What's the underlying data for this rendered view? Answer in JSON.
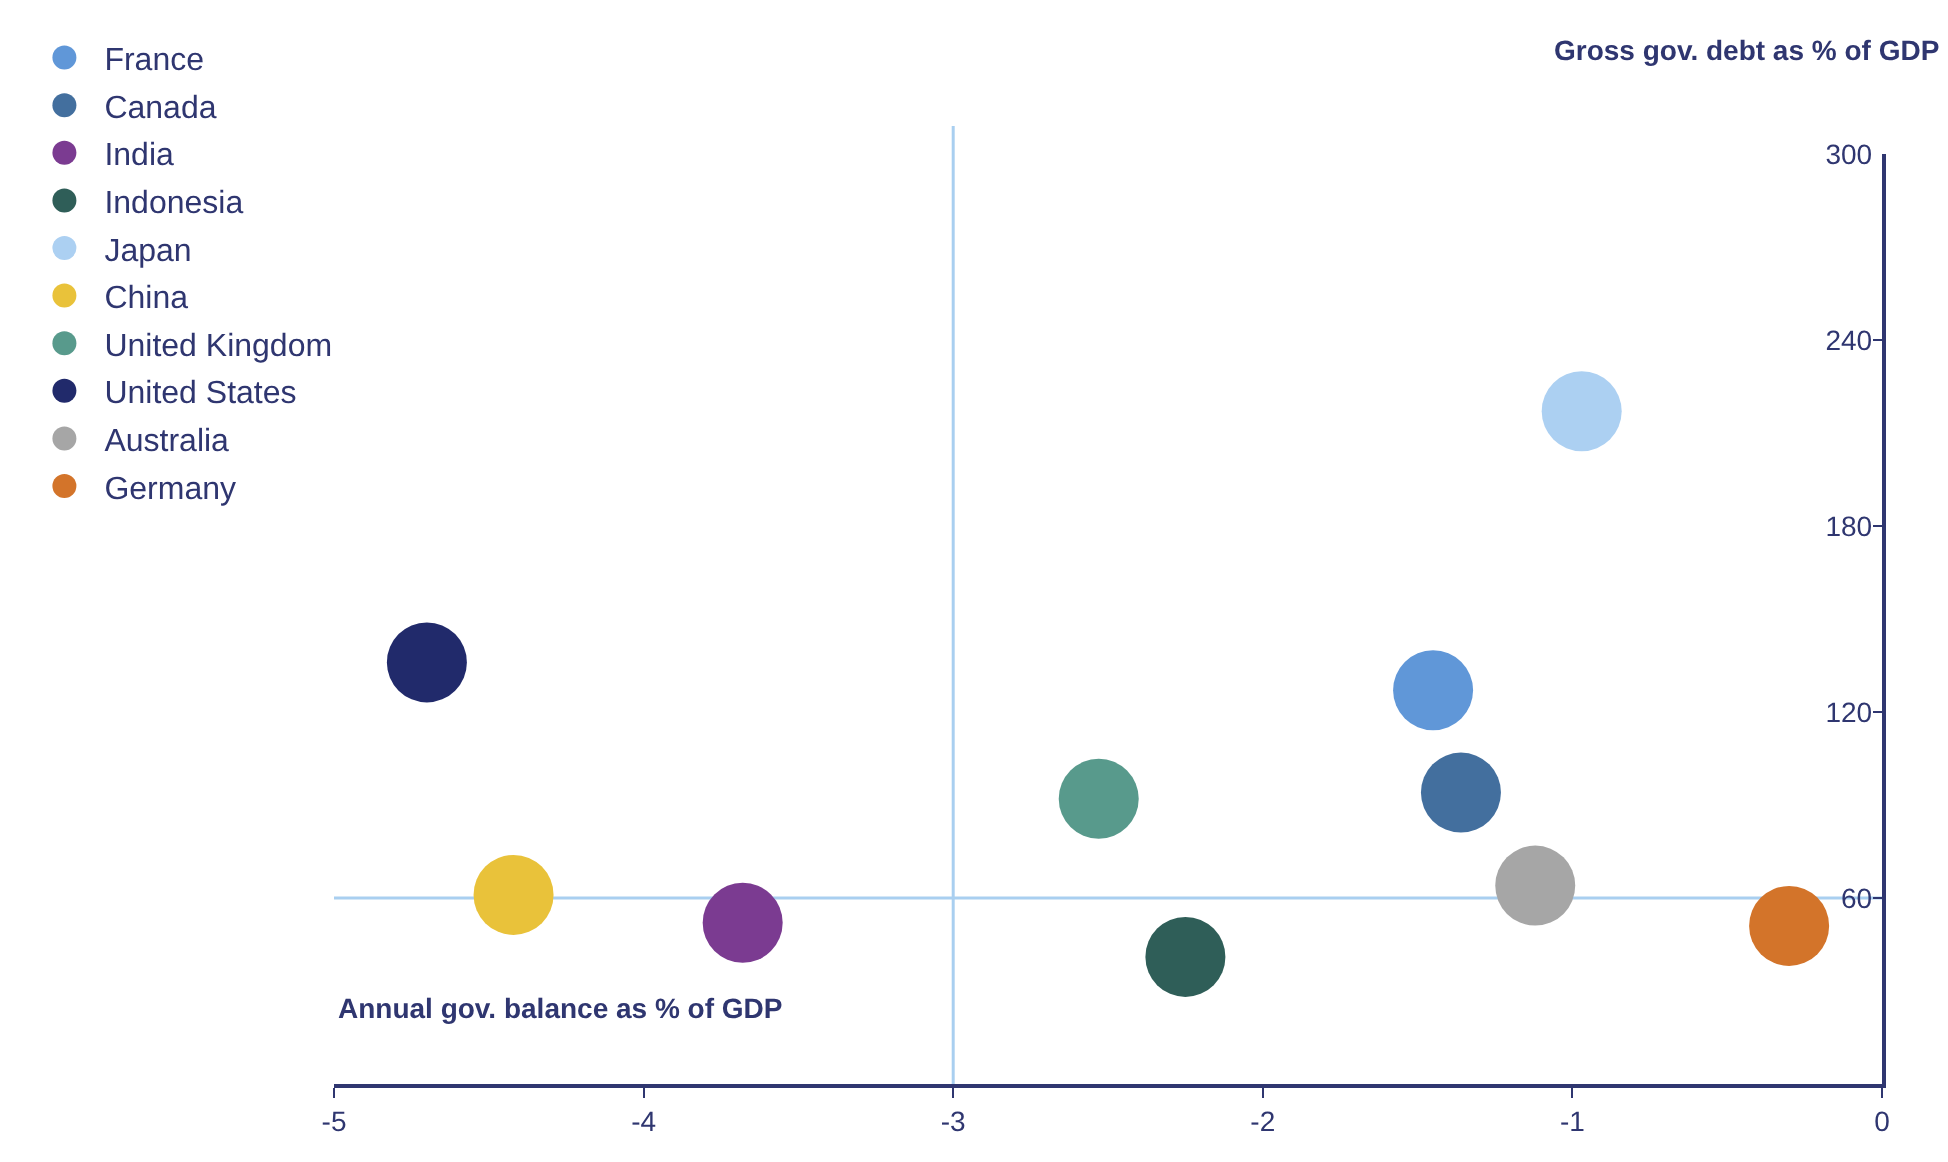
{
  "chart_data": {
    "type": "scatter",
    "xlabel": "Annual gov. balance as % of GDP",
    "ylabel": "Gross gov. debt as % of GDP",
    "xlim": [
      -5,
      0
    ],
    "xticks": [
      -5,
      -4,
      -3,
      -2,
      -1,
      0
    ],
    "ylim": [
      0,
      300
    ],
    "yticks": [
      60,
      120,
      180,
      240,
      300
    ],
    "marker": "circle",
    "legend": "top left",
    "grid": false,
    "ref_lines": [
      {
        "axis": "x",
        "value": -3,
        "color": "#a9cff0"
      },
      {
        "axis": "y",
        "value": 60,
        "color": "#a9cff0"
      }
    ],
    "series": [
      {
        "name": "France",
        "color": "#6097d8",
        "x": [
          -1.45
        ],
        "values": [
          127
        ]
      },
      {
        "name": "Canada",
        "color": "#436f9e",
        "x": [
          -1.36
        ],
        "values": [
          94
        ]
      },
      {
        "name": "India",
        "color": "#7b3b91",
        "x": [
          -3.68
        ],
        "values": [
          52
        ]
      },
      {
        "name": "Indonesia",
        "color": "#2f5e58",
        "x": [
          -2.25
        ],
        "values": [
          41
        ]
      },
      {
        "name": "Japan",
        "color": "#acd0f2",
        "x": [
          -0.97
        ],
        "values": [
          217
        ]
      },
      {
        "name": "China",
        "color": "#e9c23a",
        "x": [
          -4.42
        ],
        "values": [
          61
        ]
      },
      {
        "name": "United Kingdom",
        "color": "#589a8c",
        "x": [
          -2.53
        ],
        "values": [
          92
        ]
      },
      {
        "name": "United States",
        "color": "#212a6b",
        "x": [
          -4.7
        ],
        "values": [
          136
        ]
      },
      {
        "name": "Australia",
        "color": "#a6a6a6",
        "x": [
          -1.12
        ],
        "values": [
          64
        ]
      },
      {
        "name": "Germany",
        "color": "#d3742a",
        "x": [
          -0.3
        ],
        "values": [
          51
        ]
      }
    ]
  }
}
